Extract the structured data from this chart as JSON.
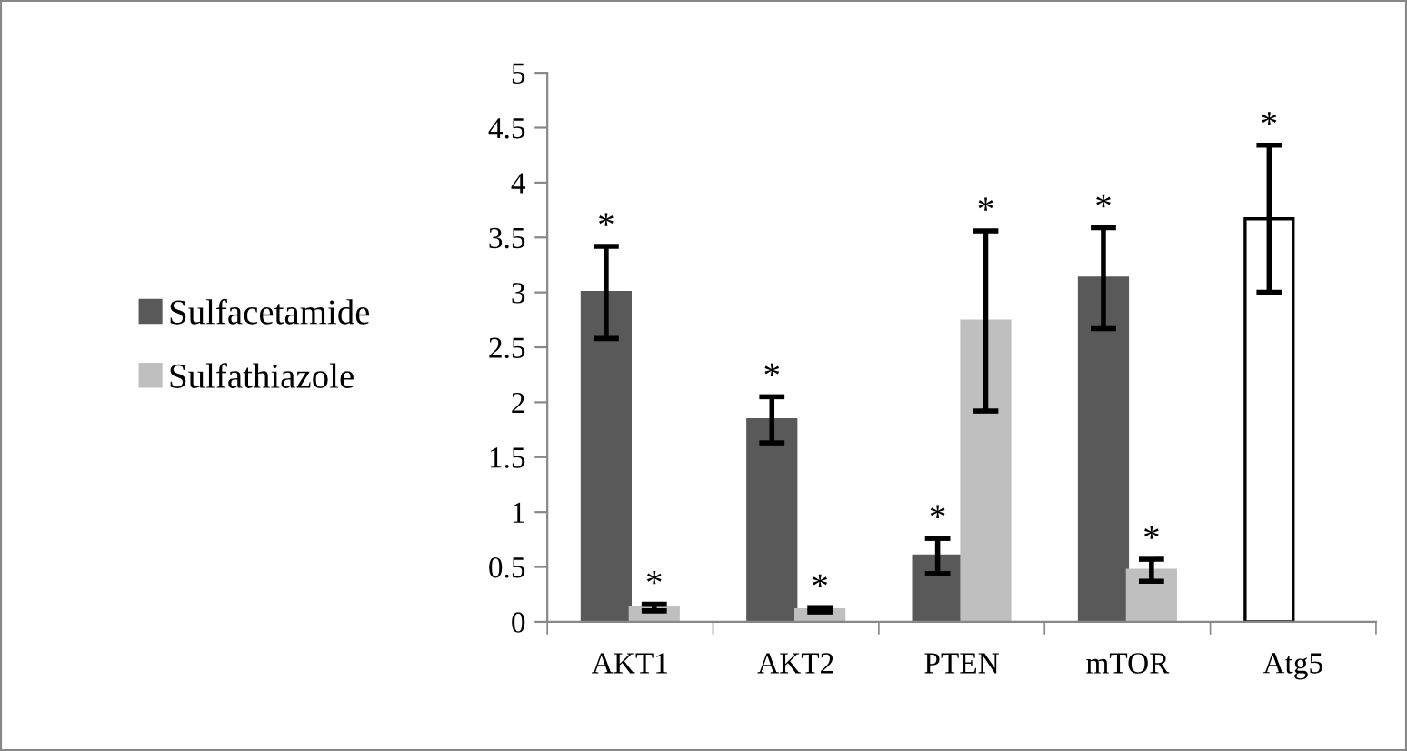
{
  "chart_data": {
    "type": "bar",
    "categories": [
      "AKT1",
      "AKT2",
      "PTEN",
      "mTOR",
      "Atg5"
    ],
    "series": [
      {
        "name": "Sulfacetamide",
        "color": "#595959",
        "colors": [
          "#595959",
          "#595959",
          "#595959",
          "#595959",
          "#ffffff"
        ],
        "values": [
          3.0,
          1.84,
          0.6,
          3.13,
          3.67
        ],
        "errors": [
          0.42,
          0.21,
          0.16,
          0.46,
          0.67
        ],
        "value_labels": [
          "*",
          "*",
          "*",
          "*",
          "*"
        ]
      },
      {
        "name": "Sulfathiazole",
        "color": "#bfbfbf",
        "values": [
          0.13,
          0.11,
          2.74,
          0.47,
          null
        ],
        "errors": [
          0.03,
          0.02,
          0.82,
          0.1,
          null
        ],
        "value_labels": [
          "*",
          "*",
          "*",
          "*",
          null
        ]
      }
    ],
    "ylim": [
      0,
      5
    ],
    "yticks": [
      0,
      0.5,
      1,
      1.5,
      2,
      2.5,
      3,
      3.5,
      4,
      4.5,
      5
    ],
    "legend": "left",
    "grid": false
  }
}
